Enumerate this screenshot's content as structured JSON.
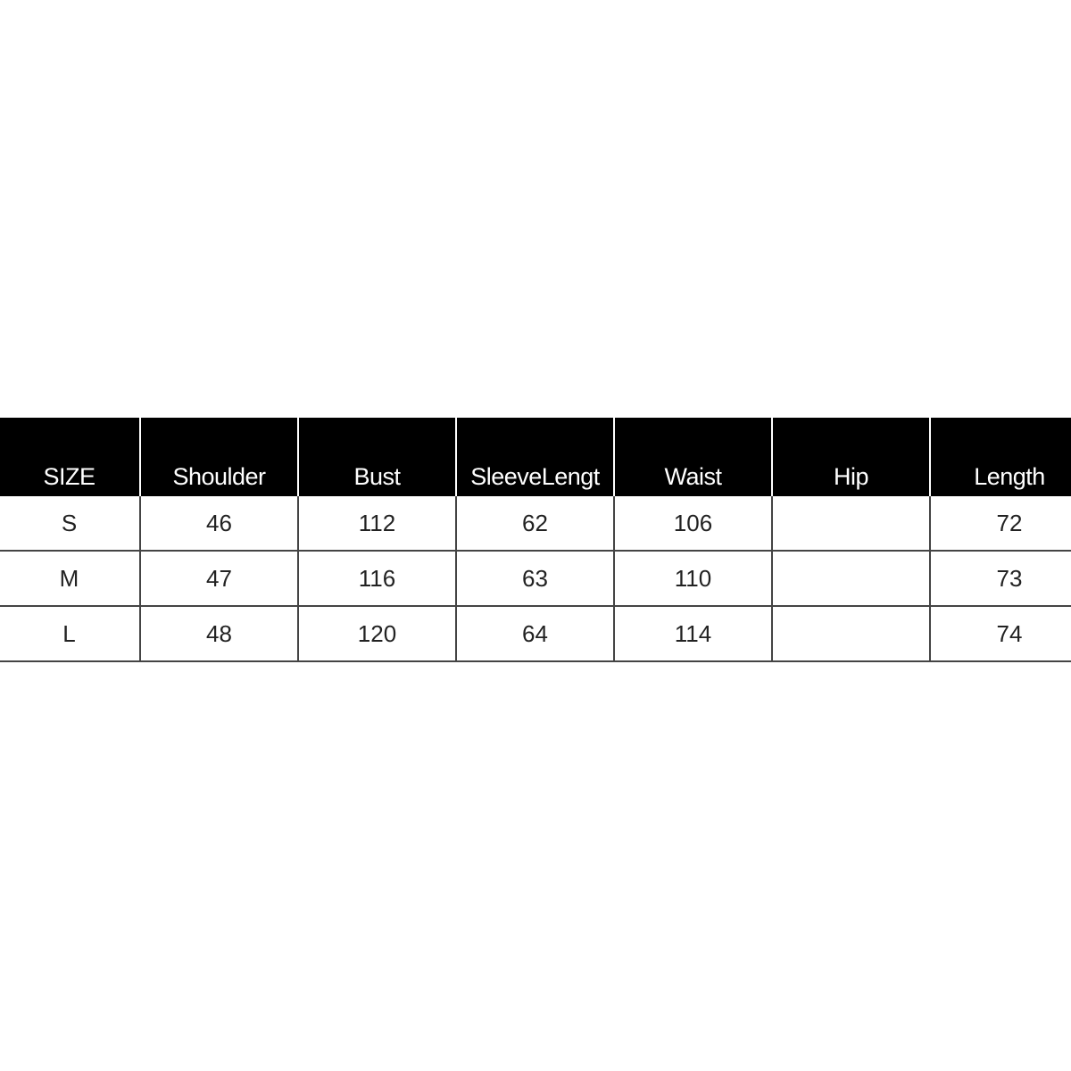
{
  "table": {
    "headers": [
      "SIZE",
      "Shoulder",
      "Bust",
      "SleeveLengt",
      "Waist",
      "Hip",
      "Length"
    ],
    "rows": [
      [
        "S",
        "46",
        "112",
        "62",
        "106",
        "",
        "72"
      ],
      [
        "M",
        "47",
        "116",
        "63",
        "110",
        "",
        "73"
      ],
      [
        "L",
        "48",
        "120",
        "64",
        "114",
        "",
        "74"
      ]
    ]
  }
}
